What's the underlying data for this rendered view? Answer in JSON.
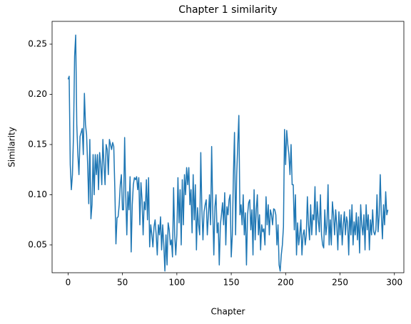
{
  "chart_data": {
    "type": "line",
    "title": "Chapter 1 similarity",
    "x_label": "Chapter",
    "y_label": "Similarity",
    "xlim": [
      -14.7,
      308.7
    ],
    "ylim": [
      0.0223,
      0.2727
    ],
    "xticks": [
      0,
      50,
      100,
      150,
      200,
      250,
      300
    ],
    "yticks": [
      0.05,
      {
        "value": 0.1,
        "label": "0.10"
      },
      0.15,
      {
        "value": 0.2,
        "label": "0.20"
      },
      0.25
    ],
    "grid": false,
    "x": [
      0,
      1,
      2,
      3,
      4,
      5,
      6,
      7,
      8,
      9,
      10,
      11,
      12,
      13,
      14,
      15,
      16,
      17,
      18,
      19,
      20,
      21,
      22,
      23,
      24,
      25,
      26,
      27,
      28,
      29,
      30,
      31,
      32,
      33,
      34,
      35,
      36,
      37,
      38,
      39,
      40,
      41,
      42,
      43,
      44,
      45,
      46,
      47,
      48,
      49,
      50,
      51,
      52,
      53,
      54,
      55,
      56,
      57,
      58,
      59,
      60,
      61,
      62,
      63,
      64,
      65,
      66,
      67,
      68,
      69,
      70,
      71,
      72,
      73,
      74,
      75,
      76,
      77,
      78,
      79,
      80,
      81,
      82,
      83,
      84,
      85,
      86,
      87,
      88,
      89,
      90,
      91,
      92,
      93,
      94,
      95,
      96,
      97,
      98,
      99,
      100,
      101,
      102,
      103,
      104,
      105,
      106,
      107,
      108,
      109,
      110,
      111,
      112,
      113,
      114,
      115,
      116,
      117,
      118,
      119,
      120,
      121,
      122,
      123,
      124,
      125,
      126,
      127,
      128,
      129,
      130,
      131,
      132,
      133,
      134,
      135,
      136,
      137,
      138,
      139,
      140,
      141,
      142,
      143,
      144,
      145,
      146,
      147,
      148,
      149,
      150,
      151,
      152,
      153,
      154,
      155,
      156,
      157,
      158,
      159,
      160,
      161,
      162,
      163,
      164,
      165,
      166,
      167,
      168,
      169,
      170,
      171,
      172,
      173,
      174,
      175,
      176,
      177,
      178,
      179,
      180,
      181,
      182,
      183,
      184,
      185,
      186,
      187,
      188,
      189,
      190,
      191,
      192,
      193,
      194,
      195,
      196,
      197,
      198,
      199,
      200,
      201,
      202,
      203,
      204,
      205,
      206,
      207,
      208,
      209,
      210,
      211,
      212,
      213,
      214,
      215,
      216,
      217,
      218,
      219,
      220,
      221,
      222,
      223,
      224,
      225,
      226,
      227,
      228,
      229,
      230,
      231,
      232,
      233,
      234,
      235,
      236,
      237,
      238,
      239,
      240,
      241,
      242,
      243,
      244,
      245,
      246,
      247,
      248,
      249,
      250,
      251,
      252,
      253,
      254,
      255,
      256,
      257,
      258,
      259,
      260,
      261,
      262,
      263,
      264,
      265,
      266,
      267,
      268,
      269,
      270,
      271,
      272,
      273,
      274,
      275,
      276,
      277,
      278,
      279,
      280,
      281,
      282,
      283,
      284,
      285,
      286,
      287,
      288,
      289,
      290,
      291,
      292,
      293,
      294
    ],
    "series": [
      {
        "color": "#1f77b4",
        "values": [
          0.215,
          0.218,
          0.13,
          0.105,
          0.12,
          0.16,
          0.238,
          0.259,
          0.17,
          0.14,
          0.12,
          0.158,
          0.162,
          0.166,
          0.14,
          0.201,
          0.17,
          0.16,
          0.13,
          0.091,
          0.155,
          0.076,
          0.09,
          0.14,
          0.1,
          0.14,
          0.12,
          0.14,
          0.105,
          0.142,
          0.13,
          0.11,
          0.155,
          0.13,
          0.11,
          0.15,
          0.145,
          0.12,
          0.155,
          0.15,
          0.145,
          0.152,
          0.148,
          0.105,
          0.051,
          0.077,
          0.078,
          0.09,
          0.11,
          0.12,
          0.085,
          0.085,
          0.157,
          0.1,
          0.06,
          0.103,
          0.085,
          0.118,
          0.043,
          0.09,
          0.11,
          0.117,
          0.115,
          0.118,
          0.105,
          0.117,
          0.07,
          0.112,
          0.095,
          0.06,
          0.093,
          0.085,
          0.115,
          0.075,
          0.117,
          0.048,
          0.07,
          0.06,
          0.048,
          0.068,
          0.075,
          0.06,
          0.04,
          0.07,
          0.06,
          0.078,
          0.045,
          0.07,
          0.05,
          0.024,
          0.06,
          0.03,
          0.072,
          0.065,
          0.05,
          0.055,
          0.038,
          0.107,
          0.06,
          0.04,
          0.06,
          0.117,
          0.072,
          0.105,
          0.05,
          0.115,
          0.07,
          0.12,
          0.1,
          0.127,
          0.11,
          0.127,
          0.09,
          0.105,
          0.062,
          0.12,
          0.075,
          0.11,
          0.045,
          0.087,
          0.07,
          0.06,
          0.142,
          0.085,
          0.055,
          0.083,
          0.09,
          0.095,
          0.06,
          0.08,
          0.1,
          0.07,
          0.148,
          0.085,
          0.04,
          0.088,
          0.1,
          0.062,
          0.072,
          0.03,
          0.07,
          0.08,
          0.092,
          0.07,
          0.102,
          0.05,
          0.088,
          0.08,
          0.095,
          0.1,
          0.038,
          0.06,
          0.12,
          0.162,
          0.06,
          0.12,
          0.15,
          0.179,
          0.08,
          0.09,
          0.07,
          0.1,
          0.06,
          0.082,
          0.03,
          0.08,
          0.092,
          0.095,
          0.065,
          0.085,
          0.04,
          0.105,
          0.055,
          0.085,
          0.1,
          0.06,
          0.08,
          0.045,
          0.07,
          0.063,
          0.066,
          0.05,
          0.098,
          0.07,
          0.09,
          0.06,
          0.085,
          0.08,
          0.07,
          0.086,
          0.085,
          0.08,
          0.05,
          0.07,
          0.03,
          0.024,
          0.04,
          0.05,
          0.068,
          0.165,
          0.13,
          0.164,
          0.15,
          0.14,
          0.12,
          0.15,
          0.11,
          0.11,
          0.065,
          0.1,
          0.04,
          0.072,
          0.05,
          0.06,
          0.075,
          0.04,
          0.06,
          0.065,
          0.05,
          0.06,
          0.098,
          0.07,
          0.055,
          0.09,
          0.06,
          0.08,
          0.075,
          0.108,
          0.06,
          0.093,
          0.075,
          0.063,
          0.1,
          0.06,
          0.05,
          0.047,
          0.085,
          0.06,
          0.07,
          0.11,
          0.05,
          0.075,
          0.05,
          0.093,
          0.08,
          0.06,
          0.085,
          0.07,
          0.045,
          0.083,
          0.06,
          0.08,
          0.05,
          0.07,
          0.083,
          0.06,
          0.078,
          0.072,
          0.04,
          0.085,
          0.06,
          0.09,
          0.05,
          0.073,
          0.06,
          0.082,
          0.055,
          0.078,
          0.042,
          0.09,
          0.07,
          0.06,
          0.08,
          0.045,
          0.09,
          0.065,
          0.08,
          0.045,
          0.075,
          0.06,
          0.085,
          0.063,
          0.06,
          0.065,
          0.1,
          0.063,
          0.08,
          0.12,
          0.08,
          0.056,
          0.09,
          0.07,
          0.103,
          0.08,
          0.085
        ]
      }
    ]
  }
}
